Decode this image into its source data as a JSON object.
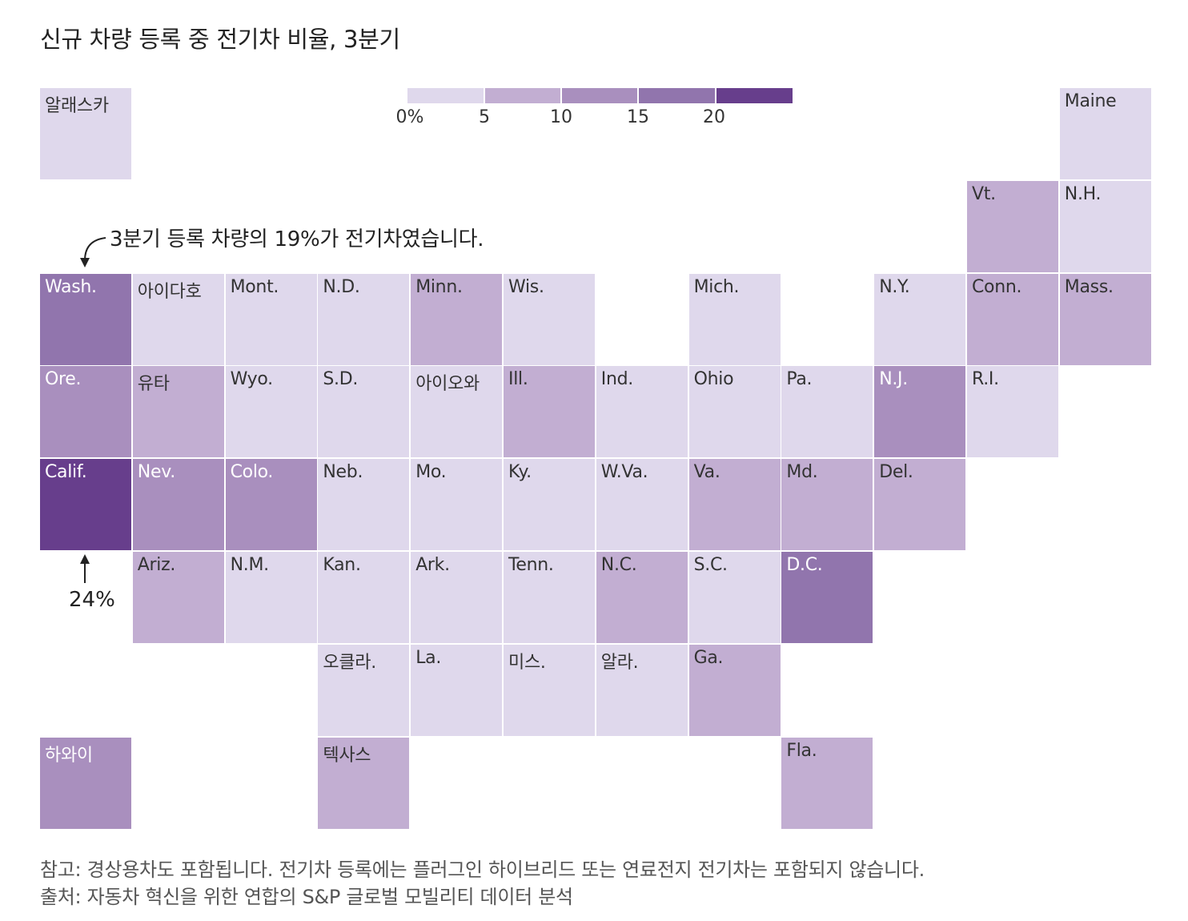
{
  "title": "신규 차량 등록 중 전기차 비율, 3분기",
  "legend": {
    "ticks": [
      "0%",
      "5",
      "10",
      "15",
      "20"
    ],
    "colors": [
      "#dfd8ec",
      "#c2aed2",
      "#a98fbe",
      "#9175ad",
      "#673e8c"
    ]
  },
  "annotation": {
    "text": "3분기 등록 차량의 19%가 전기차였습니다.",
    "calif_value": "24%"
  },
  "chart_data": {
    "type": "tile-map",
    "title": "신규 차량 등록 중 전기차 비율, 3분기",
    "legend_bins": [
      "0-5%",
      "5-10%",
      "10-15%",
      "15-20%",
      "20%+"
    ],
    "tiles": [
      {
        "label": "알래스카",
        "col": 0,
        "row": 0,
        "bin": 0
      },
      {
        "label": "Maine",
        "col": 11,
        "row": 0,
        "bin": 0
      },
      {
        "label": "Vt.",
        "col": 10,
        "row": 1,
        "bin": 1
      },
      {
        "label": "N.H.",
        "col": 11,
        "row": 1,
        "bin": 0
      },
      {
        "label": "Wash.",
        "col": 0,
        "row": 2,
        "bin": 3
      },
      {
        "label": "아이다호",
        "col": 1,
        "row": 2,
        "bin": 0
      },
      {
        "label": "Mont.",
        "col": 2,
        "row": 2,
        "bin": 0
      },
      {
        "label": "N.D.",
        "col": 3,
        "row": 2,
        "bin": 0
      },
      {
        "label": "Minn.",
        "col": 4,
        "row": 2,
        "bin": 1
      },
      {
        "label": "Wis.",
        "col": 5,
        "row": 2,
        "bin": 0
      },
      {
        "label": "Mich.",
        "col": 7,
        "row": 2,
        "bin": 0
      },
      {
        "label": "N.Y.",
        "col": 9,
        "row": 2,
        "bin": 0
      },
      {
        "label": "Conn.",
        "col": 10,
        "row": 2,
        "bin": 1
      },
      {
        "label": "Mass.",
        "col": 11,
        "row": 2,
        "bin": 1
      },
      {
        "label": "Ore.",
        "col": 0,
        "row": 3,
        "bin": 2
      },
      {
        "label": "유타",
        "col": 1,
        "row": 3,
        "bin": 1
      },
      {
        "label": "Wyo.",
        "col": 2,
        "row": 3,
        "bin": 0
      },
      {
        "label": "S.D.",
        "col": 3,
        "row": 3,
        "bin": 0
      },
      {
        "label": "아이오와",
        "col": 4,
        "row": 3,
        "bin": 0
      },
      {
        "label": "Ill.",
        "col": 5,
        "row": 3,
        "bin": 1
      },
      {
        "label": "Ind.",
        "col": 6,
        "row": 3,
        "bin": 0
      },
      {
        "label": "Ohio",
        "col": 7,
        "row": 3,
        "bin": 0
      },
      {
        "label": "Pa.",
        "col": 8,
        "row": 3,
        "bin": 0
      },
      {
        "label": "N.J.",
        "col": 9,
        "row": 3,
        "bin": 2
      },
      {
        "label": "R.I.",
        "col": 10,
        "row": 3,
        "bin": 0
      },
      {
        "label": "Calif.",
        "col": 0,
        "row": 4,
        "bin": 4
      },
      {
        "label": "Nev.",
        "col": 1,
        "row": 4,
        "bin": 2
      },
      {
        "label": "Colo.",
        "col": 2,
        "row": 4,
        "bin": 2
      },
      {
        "label": "Neb.",
        "col": 3,
        "row": 4,
        "bin": 0
      },
      {
        "label": "Mo.",
        "col": 4,
        "row": 4,
        "bin": 0
      },
      {
        "label": "Ky.",
        "col": 5,
        "row": 4,
        "bin": 0
      },
      {
        "label": "W.Va.",
        "col": 6,
        "row": 4,
        "bin": 0
      },
      {
        "label": "Va.",
        "col": 7,
        "row": 4,
        "bin": 1
      },
      {
        "label": "Md.",
        "col": 8,
        "row": 4,
        "bin": 1
      },
      {
        "label": "Del.",
        "col": 9,
        "row": 4,
        "bin": 1
      },
      {
        "label": "Ariz.",
        "col": 1,
        "row": 5,
        "bin": 1
      },
      {
        "label": "N.M.",
        "col": 2,
        "row": 5,
        "bin": 0
      },
      {
        "label": "Kan.",
        "col": 3,
        "row": 5,
        "bin": 0
      },
      {
        "label": "Ark.",
        "col": 4,
        "row": 5,
        "bin": 0
      },
      {
        "label": "Tenn.",
        "col": 5,
        "row": 5,
        "bin": 0
      },
      {
        "label": "N.C.",
        "col": 6,
        "row": 5,
        "bin": 1
      },
      {
        "label": "S.C.",
        "col": 7,
        "row": 5,
        "bin": 0
      },
      {
        "label": "D.C.",
        "col": 8,
        "row": 5,
        "bin": 3
      },
      {
        "label": "오클라.",
        "col": 3,
        "row": 6,
        "bin": 0
      },
      {
        "label": "La.",
        "col": 4,
        "row": 6,
        "bin": 0
      },
      {
        "label": "미스.",
        "col": 5,
        "row": 6,
        "bin": 0
      },
      {
        "label": "알라.",
        "col": 6,
        "row": 6,
        "bin": 0
      },
      {
        "label": "Ga.",
        "col": 7,
        "row": 6,
        "bin": 1
      },
      {
        "label": "하와이",
        "col": 0,
        "row": 7,
        "bin": 2
      },
      {
        "label": "텍사스",
        "col": 3,
        "row": 7,
        "bin": 1
      },
      {
        "label": "Fla.",
        "col": 8,
        "row": 7,
        "bin": 1
      }
    ]
  },
  "notes": {
    "note": "참고: 경상용차도 포함됩니다. 전기차 등록에는 플러그인 하이브리드 또는 연료전지 전기차는 포함되지 않습니다.",
    "source": "출처: 자동차 혁신을 위한 연합의 S&P 글로벌 모빌리티 데이터 분석"
  }
}
